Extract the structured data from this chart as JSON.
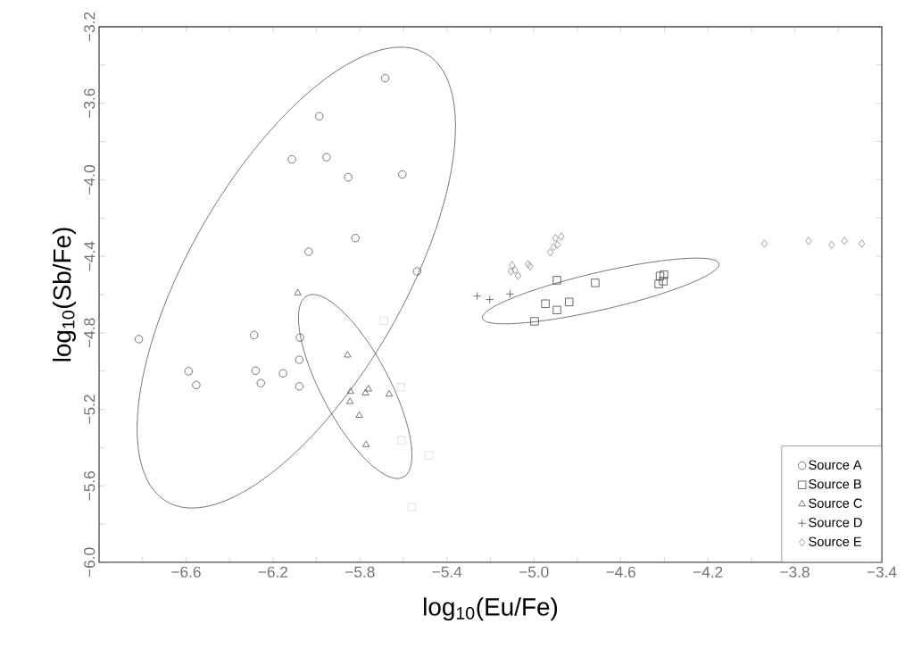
{
  "chart_data": {
    "type": "scatter",
    "xlabel": "log$_{10}$(Eu/Fe)",
    "ylabel": "log$_{10}$(Sb/Fe)",
    "xlim": [
      -7.0,
      -3.4
    ],
    "ylim": [
      -6.0,
      -3.2
    ],
    "xticks": [
      {
        "value": -6.8,
        "label": null
      },
      {
        "value": -6.6,
        "label": "−6.6"
      },
      {
        "value": -6.4,
        "label": null
      },
      {
        "value": -6.2,
        "label": "−6.2"
      },
      {
        "value": -6.0,
        "label": null
      },
      {
        "value": -5.8,
        "label": "−5.8"
      },
      {
        "value": -5.6,
        "label": null
      },
      {
        "value": -5.4,
        "label": "−5.4"
      },
      {
        "value": -5.2,
        "label": null
      },
      {
        "value": -5.0,
        "label": "−5.0"
      },
      {
        "value": -4.8,
        "label": null
      },
      {
        "value": -4.6,
        "label": "−4.6"
      },
      {
        "value": -4.4,
        "label": null
      },
      {
        "value": -4.2,
        "label": "−4.2"
      },
      {
        "value": -4.0,
        "label": null
      },
      {
        "value": -3.8,
        "label": "−3.8"
      },
      {
        "value": -3.6,
        "label": null
      },
      {
        "value": -3.4,
        "label": "−3.4"
      }
    ],
    "yticks": [
      {
        "value": -6.0,
        "label": "−6.0"
      },
      {
        "value": -5.8,
        "label": null
      },
      {
        "value": -5.6,
        "label": "−5.6"
      },
      {
        "value": -5.4,
        "label": null
      },
      {
        "value": -5.2,
        "label": "−5.2"
      },
      {
        "value": -5.0,
        "label": null
      },
      {
        "value": -4.8,
        "label": "−4.8"
      },
      {
        "value": -4.6,
        "label": null
      },
      {
        "value": -4.4,
        "label": "−4.4"
      },
      {
        "value": -4.2,
        "label": null
      },
      {
        "value": -4.0,
        "label": "−4.0"
      },
      {
        "value": -3.8,
        "label": null
      },
      {
        "value": -3.6,
        "label": "−3.6"
      },
      {
        "value": -3.4,
        "label": null
      },
      {
        "value": -3.2,
        "label": "−3.2"
      }
    ],
    "legend": "bottom right",
    "series": [
      {
        "name": "Source A",
        "color": "#555555",
        "marker": "circle",
        "x": [
          -5.684,
          -5.987,
          -6.113,
          -5.954,
          -5.854,
          -5.605,
          -5.821,
          -6.036,
          -5.537,
          -6.817,
          -6.287,
          -6.076,
          -6.079,
          -6.588,
          -6.28,
          -6.154,
          -6.553,
          -6.256,
          -6.079
        ],
        "values": [
          -3.469,
          -3.668,
          -3.893,
          -3.882,
          -3.987,
          -3.972,
          -4.305,
          -4.376,
          -4.479,
          -4.833,
          -4.812,
          -4.825,
          -4.941,
          -5.001,
          -4.998,
          -5.012,
          -5.073,
          -5.063,
          -5.08
        ]
      },
      {
        "name": "Source B",
        "color": "#444444",
        "marker": "square",
        "x": [
          -4.894,
          -4.718,
          -4.426,
          -4.42,
          -4.402,
          -4.405,
          -4.947,
          -4.894,
          -4.838,
          -4.997
        ],
        "values": [
          -4.525,
          -4.539,
          -4.545,
          -4.503,
          -4.496,
          -4.53,
          -4.648,
          -4.681,
          -4.639,
          -4.74
        ]
      },
      {
        "name": "Source C",
        "color": "#555555",
        "marker": "triangle",
        "x": [
          -6.086,
          -5.857,
          -5.843,
          -5.846,
          -5.775,
          -5.761,
          -5.666,
          -5.803,
          -5.772
        ],
        "values": [
          -4.592,
          -4.917,
          -5.107,
          -5.16,
          -5.115,
          -5.094,
          -5.121,
          -5.232,
          -5.385
        ]
      },
      {
        "name": "Source D",
        "color": "#555555",
        "marker": "cross",
        "x": [
          -5.261,
          -5.203,
          -5.11
        ],
        "values": [
          -4.608,
          -4.626,
          -4.597
        ]
      },
      {
        "name": "Source E",
        "color": "#888888",
        "marker": "diamond",
        "x": [
          -5.1,
          -5.106,
          -5.087,
          -5.073,
          -5.027,
          -5.018,
          -4.925,
          -4.909,
          -4.892,
          -4.901,
          -4.874,
          -3.94,
          -3.737,
          -3.631,
          -3.572,
          -3.492
        ],
        "values": [
          -4.447,
          -4.479,
          -4.473,
          -4.502,
          -4.441,
          -4.452,
          -4.379,
          -4.351,
          -4.34,
          -4.305,
          -4.297,
          -4.334,
          -4.32,
          -4.34,
          -4.32,
          -4.334
        ]
      },
      {
        "color": "#d8d8d8",
        "marker": "square",
        "x": [
          -5.69,
          -5.612,
          -5.609,
          -5.483,
          -5.561
        ],
        "values": [
          -4.737,
          -5.084,
          -5.361,
          -5.44,
          -5.711
        ]
      }
    ]
  }
}
